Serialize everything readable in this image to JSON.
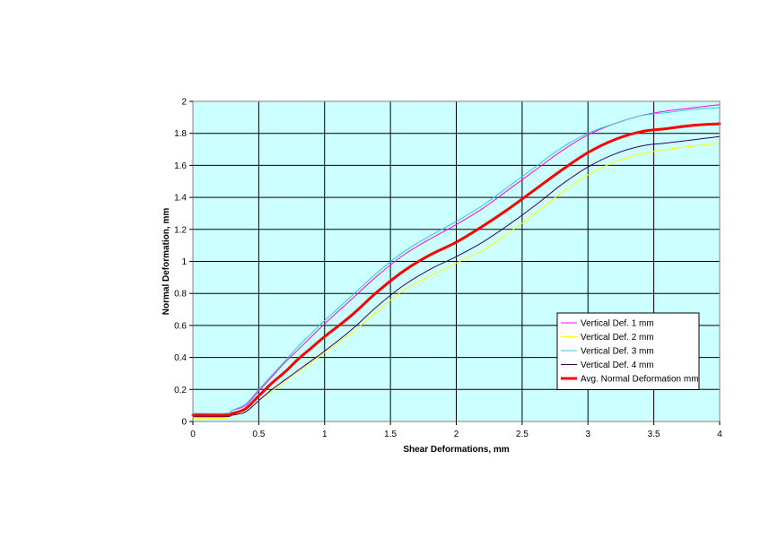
{
  "chart_data": {
    "type": "line",
    "title": "",
    "xlabel": "Shear Deformations, mm",
    "ylabel": "Normal Deformation, mm",
    "xlim": [
      0,
      4
    ],
    "ylim": [
      0,
      2
    ],
    "xticks": [
      "0",
      "0.5",
      "1",
      "1.5",
      "2",
      "2.5",
      "3",
      "3.5",
      "4"
    ],
    "yticks": [
      "0",
      "0.2",
      "0.4",
      "0.6",
      "0.8",
      "1",
      "1.2",
      "1.4",
      "1.6",
      "1.8",
      "2"
    ],
    "grid": true,
    "plot_background": "#ccffff",
    "legend_position": "right",
    "series": [
      {
        "name": "Vertical Def. 1 mm",
        "color": "#ff00ff",
        "width": 1,
        "x": [
          0,
          0.25,
          0.3,
          0.4,
          0.5,
          0.6,
          0.7,
          0.8,
          0.9,
          1.0,
          1.2,
          1.4,
          1.6,
          1.8,
          2.0,
          2.2,
          2.4,
          2.6,
          2.8,
          3.0,
          3.2,
          3.4,
          3.6,
          3.8,
          4.0
        ],
        "y": [
          0.05,
          0.05,
          0.07,
          0.1,
          0.19,
          0.28,
          0.37,
          0.45,
          0.53,
          0.61,
          0.76,
          0.91,
          1.04,
          1.14,
          1.23,
          1.33,
          1.45,
          1.57,
          1.69,
          1.79,
          1.86,
          1.91,
          1.94,
          1.96,
          1.98
        ]
      },
      {
        "name": "Vertical Def. 2 mm",
        "color": "#ffff00",
        "width": 1,
        "x": [
          0,
          0.25,
          0.3,
          0.4,
          0.5,
          0.6,
          0.7,
          0.8,
          0.9,
          1.0,
          1.2,
          1.4,
          1.6,
          1.8,
          2.0,
          2.2,
          2.4,
          2.6,
          2.8,
          3.0,
          3.2,
          3.4,
          3.6,
          3.8,
          4.0
        ],
        "y": [
          0.02,
          0.02,
          0.04,
          0.06,
          0.13,
          0.19,
          0.25,
          0.31,
          0.37,
          0.43,
          0.55,
          0.69,
          0.82,
          0.91,
          0.99,
          1.07,
          1.18,
          1.3,
          1.43,
          1.54,
          1.62,
          1.67,
          1.7,
          1.72,
          1.74
        ]
      },
      {
        "name": "Vertical Def. 3 mm",
        "color": "#33cccc",
        "width": 1,
        "x": [
          0,
          0.25,
          0.3,
          0.4,
          0.5,
          0.6,
          0.7,
          0.8,
          0.9,
          1.0,
          1.2,
          1.4,
          1.6,
          1.8,
          2.0,
          2.2,
          2.4,
          2.6,
          2.8,
          3.0,
          3.2,
          3.4,
          3.6,
          3.8,
          4.0
        ],
        "y": [
          0.05,
          0.05,
          0.07,
          0.11,
          0.2,
          0.29,
          0.38,
          0.47,
          0.55,
          0.63,
          0.78,
          0.93,
          1.06,
          1.16,
          1.25,
          1.35,
          1.47,
          1.59,
          1.71,
          1.8,
          1.86,
          1.91,
          1.93,
          1.95,
          1.96
        ]
      },
      {
        "name": "Vertical Def. 4 mm",
        "color": "#330066",
        "width": 1,
        "x": [
          0,
          0.25,
          0.3,
          0.4,
          0.5,
          0.6,
          0.7,
          0.8,
          0.9,
          1.0,
          1.2,
          1.4,
          1.6,
          1.8,
          2.0,
          2.2,
          2.4,
          2.6,
          2.8,
          3.0,
          3.2,
          3.4,
          3.6,
          3.8,
          4.0
        ],
        "y": [
          0.03,
          0.03,
          0.04,
          0.06,
          0.13,
          0.2,
          0.26,
          0.32,
          0.38,
          0.44,
          0.57,
          0.72,
          0.85,
          0.95,
          1.03,
          1.12,
          1.23,
          1.35,
          1.48,
          1.59,
          1.67,
          1.72,
          1.74,
          1.76,
          1.78
        ]
      },
      {
        "name": "Avg. Normal Deformation mm",
        "color": "#ff0000",
        "width": 3,
        "x": [
          0,
          0.25,
          0.3,
          0.4,
          0.5,
          0.6,
          0.7,
          0.8,
          0.9,
          1.0,
          1.2,
          1.4,
          1.6,
          1.8,
          2.0,
          2.2,
          2.4,
          2.6,
          2.8,
          3.0,
          3.2,
          3.4,
          3.6,
          3.8,
          4.0
        ],
        "y": [
          0.04,
          0.04,
          0.05,
          0.08,
          0.16,
          0.24,
          0.31,
          0.39,
          0.46,
          0.53,
          0.66,
          0.81,
          0.94,
          1.04,
          1.12,
          1.22,
          1.33,
          1.45,
          1.57,
          1.68,
          1.76,
          1.81,
          1.83,
          1.85,
          1.86
        ]
      }
    ]
  }
}
